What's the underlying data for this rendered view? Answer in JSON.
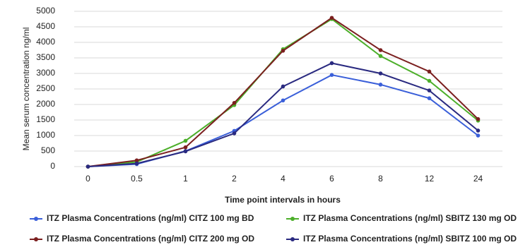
{
  "chart_data": {
    "type": "line",
    "x_label": "Time point intervals in hours",
    "y_label": "Mean serum concentration ng/ml",
    "categories": [
      "0",
      "0.5",
      "1",
      "2",
      "4",
      "6",
      "8",
      "12",
      "24"
    ],
    "series": [
      {
        "name": "ITZ Plasma Concentrations (ng/ml) CITZ 100 mg BD",
        "color": "#3a5fd9",
        "values": [
          0,
          80,
          500,
          1150,
          2130,
          2950,
          2640,
          2200,
          1000
        ]
      },
      {
        "name": "ITZ Plasma Concentrations (ng/ml) SBITZ 130 mg OD",
        "color": "#4caf2a",
        "values": [
          0,
          150,
          830,
          1980,
          3780,
          4750,
          3560,
          2760,
          1480
        ]
      },
      {
        "name": "ITZ Plasma Concentrations (ng/ml) CITZ 200 mg OD",
        "color": "#7b1f1f",
        "values": [
          0,
          200,
          620,
          2050,
          3730,
          4790,
          3750,
          3060,
          1530
        ]
      },
      {
        "name": "ITZ Plasma Concentrations (ng/ml) SBITZ 100 mg OD",
        "color": "#2a2a80",
        "values": [
          0,
          100,
          490,
          1070,
          2580,
          3330,
          3000,
          2450,
          1160
        ]
      }
    ],
    "ylim": [
      0,
      5000
    ],
    "yticks": [
      0,
      500,
      1000,
      1500,
      2000,
      2500,
      3000,
      3500,
      4000,
      4500,
      5000
    ],
    "grid": true
  }
}
